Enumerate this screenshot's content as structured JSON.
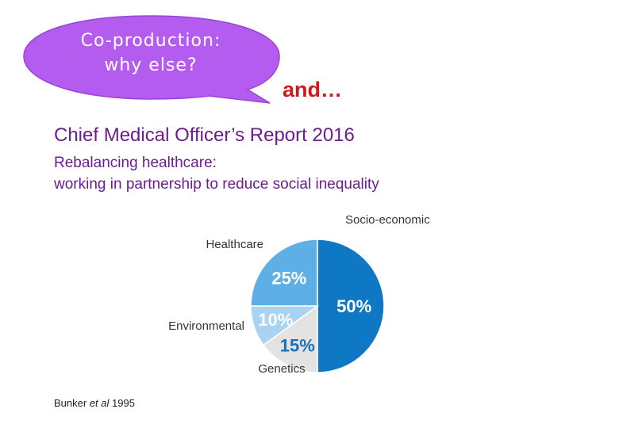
{
  "bubble": {
    "line1": "Co-production:",
    "line2": "why else?",
    "fill_color": "#b45cf0"
  },
  "and_text": "and…",
  "report": {
    "title": "Chief Medical Officer’s Report 2016",
    "subtitle_line1": "Rebalancing healthcare:",
    "subtitle_line2": "working in partnership to reduce social inequality",
    "text_color": "#6b1d8f"
  },
  "chart_data": {
    "type": "pie",
    "slices": [
      {
        "label": "Socio-economic",
        "value": 50,
        "value_label": "50%",
        "color": "#0e78c4"
      },
      {
        "label": "Genetics",
        "value": 15,
        "value_label": "15%",
        "color": "#e3e3e3"
      },
      {
        "label": "Environmental",
        "value": 10,
        "value_label": "10%",
        "color": "#a9d3f2"
      },
      {
        "label": "Healthcare",
        "value": 25,
        "value_label": "25%",
        "color": "#5eafe6"
      }
    ]
  },
  "citation": {
    "author": "Bunker",
    "etal": "et al",
    "year": "1995"
  }
}
